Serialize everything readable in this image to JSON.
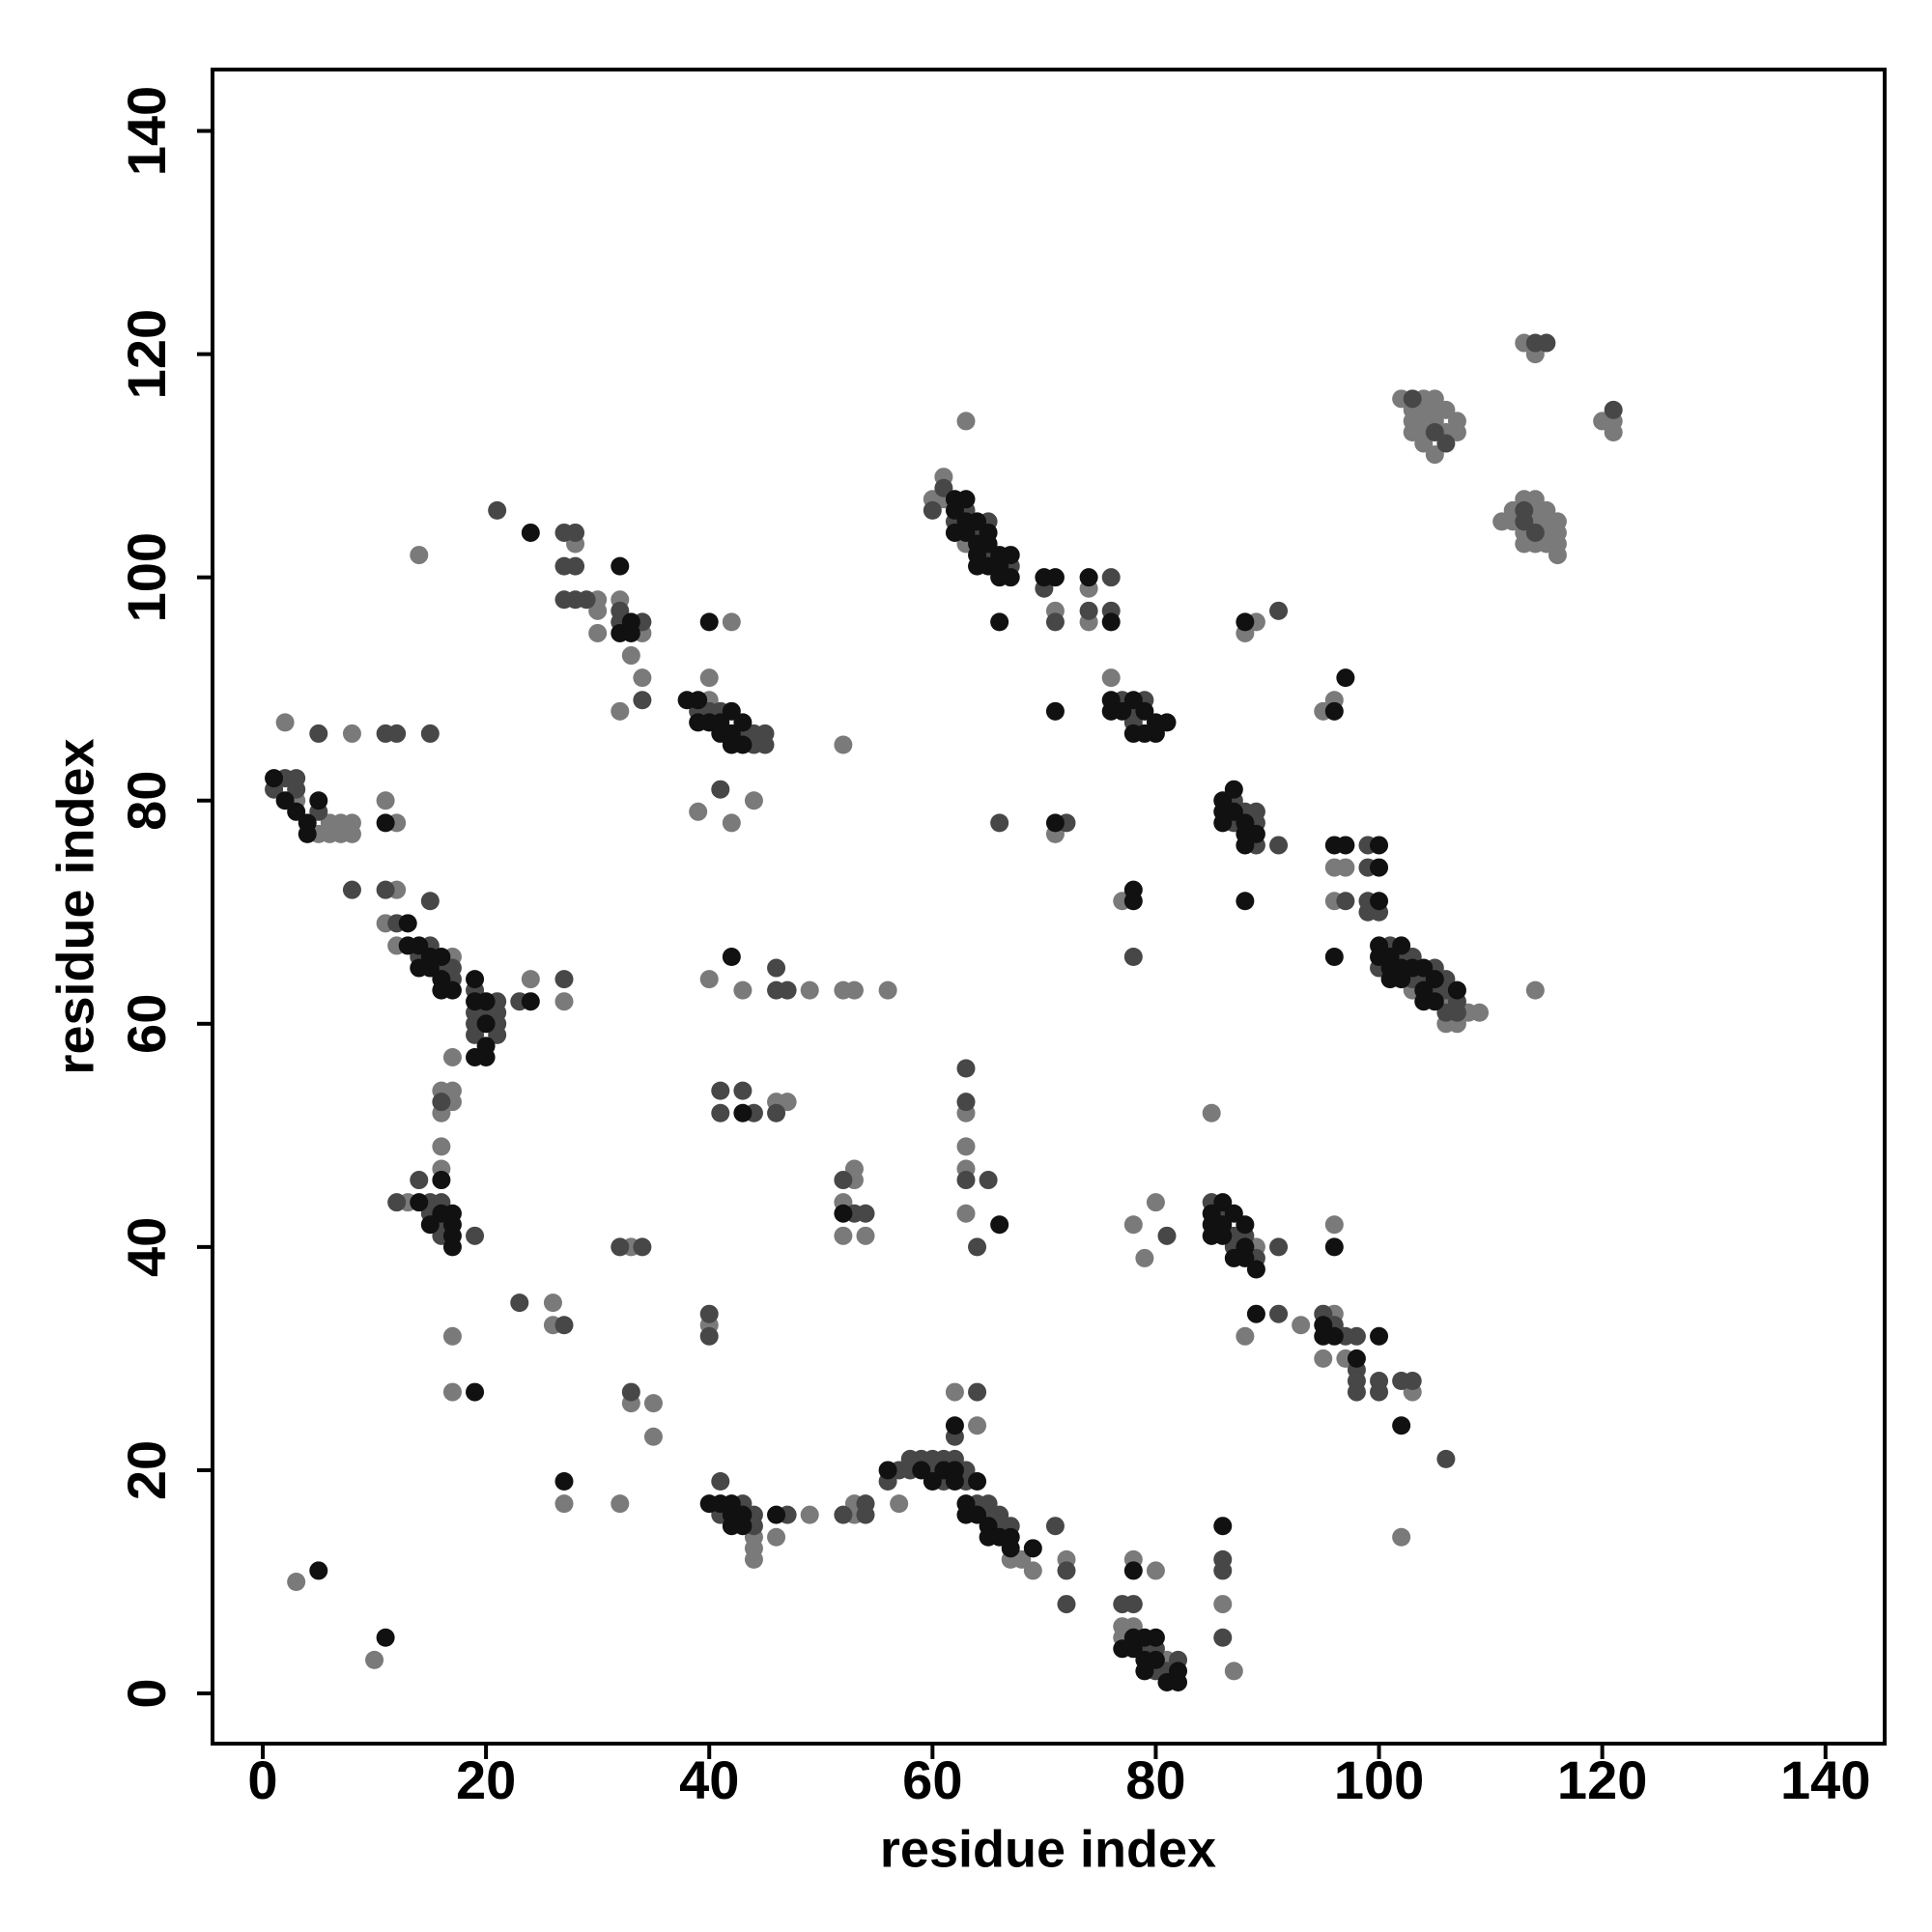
{
  "chart_data": {
    "type": "scatter",
    "xlabel": "residue index",
    "ylabel": "residue index",
    "xlim": [
      -4.5,
      145.3
    ],
    "ylim": [
      -4.5,
      145.5
    ],
    "xticks": [
      0,
      20,
      40,
      60,
      80,
      100,
      120,
      140
    ],
    "yticks": [
      0,
      20,
      40,
      60,
      80,
      100,
      120,
      140
    ],
    "series": [
      {
        "color": "#7a7a7a",
        "x": [
          3,
          5,
          6,
          7,
          7,
          8,
          6,
          8,
          2,
          8,
          11,
          12,
          12,
          11,
          12,
          17,
          24,
          27,
          17,
          16,
          17,
          17,
          16,
          16,
          16,
          13,
          17,
          17,
          26,
          26,
          3,
          10,
          14,
          28,
          30,
          30,
          30,
          32,
          34,
          33,
          34,
          32,
          40,
          40,
          42,
          39,
          42,
          44,
          52,
          40,
          43,
          49,
          52,
          53,
          56,
          46,
          47,
          33,
          40,
          33,
          35,
          35,
          27,
          32,
          44,
          44,
          44,
          46,
          49,
          53,
          53,
          52,
          52,
          54,
          53,
          53,
          57,
          62,
          64,
          67,
          68,
          69,
          72,
          63,
          63,
          63,
          63,
          60,
          61,
          61,
          63,
          63,
          71,
          74,
          74,
          71,
          76,
          77,
          85,
          80,
          78,
          79,
          89,
          88,
          93,
          96,
          95,
          97,
          103,
          102,
          78,
          80,
          77,
          77,
          78,
          81,
          86,
          87,
          88,
          89,
          95,
          96,
          96,
          97,
          96,
          96,
          103,
          106,
          106,
          107,
          108,
          109,
          114,
          102,
          104,
          103,
          104,
          105,
          103,
          104,
          105,
          106,
          103,
          104,
          106,
          107,
          107,
          104,
          105,
          105,
          113,
          114,
          120,
          121,
          121,
          111,
          112,
          113,
          114,
          112,
          114,
          115,
          114,
          115,
          116,
          113,
          115,
          116,
          113,
          114,
          115,
          116,
          116
        ],
        "values": [
          80,
          77,
          77,
          78,
          77,
          77,
          78,
          78,
          87,
          86,
          80,
          78,
          72,
          69,
          67,
          66,
          64,
          62,
          57,
          54,
          54,
          53,
          52,
          49,
          47,
          44,
          32,
          27,
          35,
          33,
          10,
          3,
          102,
          103,
          98,
          97,
          95,
          98,
          95,
          93,
          91,
          88,
          89,
          91,
          96,
          79,
          78,
          80,
          85,
          64,
          63,
          63,
          63,
          63,
          63,
          53,
          53,
          40,
          33,
          26,
          26,
          23,
          17,
          17,
          14,
          13,
          12,
          14,
          16,
          47,
          46,
          44,
          41,
          41,
          17,
          16,
          17,
          27,
          24,
          12,
          12,
          11,
          12,
          52,
          49,
          47,
          43,
          107,
          109,
          107,
          103,
          114,
          97,
          99,
          96,
          77,
          91,
          71,
          52,
          44,
          42,
          39,
          40,
          32,
          33,
          34,
          30,
          30,
          27,
          14,
          12,
          11,
          6,
          5,
          6,
          3,
          8,
          2,
          95,
          96,
          88,
          89,
          74,
          74,
          71,
          42,
          63,
          62,
          60,
          60,
          61,
          61,
          63,
          116,
          116,
          115,
          115,
          116,
          114,
          114,
          114,
          115,
          113,
          113,
          113,
          114,
          113,
          112,
          111,
          115,
          121,
          120,
          114,
          114,
          113,
          105,
          106,
          107,
          107,
          105,
          106,
          106,
          105,
          105,
          105,
          104,
          104,
          104,
          103,
          103,
          103,
          103,
          102
        ]
      },
      {
        "color": "#474747",
        "x": [
          2,
          3,
          1,
          3,
          5,
          5,
          11,
          12,
          15,
          8,
          11,
          15,
          12,
          14,
          15,
          16,
          17,
          17,
          19,
          19,
          19,
          19,
          20,
          21,
          21,
          21,
          21,
          23,
          27,
          16,
          14,
          12,
          15,
          16,
          15,
          16,
          16,
          19,
          23,
          27,
          21,
          27,
          28,
          27,
          28,
          27,
          28,
          29,
          32,
          32,
          34,
          34,
          39,
          40,
          41,
          43,
          44,
          44,
          45,
          45,
          41,
          46,
          46,
          47,
          41,
          43,
          41,
          44,
          46,
          32,
          34,
          40,
          40,
          33,
          41,
          41,
          43,
          44,
          44,
          47,
          52,
          53,
          54,
          52,
          54,
          54,
          56,
          57,
          58,
          59,
          58,
          60,
          60,
          61,
          61,
          62,
          62,
          64,
          63,
          63,
          65,
          64,
          65,
          66,
          66,
          67,
          71,
          72,
          72,
          63,
          63,
          63,
          64,
          65,
          60,
          61,
          62,
          63,
          64,
          65,
          65,
          67,
          66,
          70,
          71,
          74,
          76,
          76,
          72,
          77,
          78,
          78,
          79,
          78,
          81,
          85,
          86,
          87,
          87,
          88,
          89,
          91,
          91,
          95,
          96,
          97,
          98,
          98,
          98,
          98,
          100,
          100,
          102,
          103,
          106,
          77,
          78,
          79,
          80,
          80,
          81,
          82,
          86,
          86,
          86,
          87,
          87,
          88,
          89,
          89,
          89,
          91,
          91,
          97,
          99,
          99,
          99,
          99,
          100,
          100,
          101,
          102,
          103,
          103,
          104,
          105,
          105,
          106,
          106,
          106,
          107,
          107,
          103,
          105,
          106,
          114,
          115,
          121,
          113,
          113,
          114
        ],
        "values": [
          82,
          82,
          81,
          81,
          79,
          86,
          86,
          86,
          86,
          72,
          72,
          71,
          69,
          66,
          67,
          65,
          65,
          64,
          63,
          61,
          60,
          59,
          61,
          62,
          61,
          60,
          59,
          62,
          64,
          53,
          46,
          44,
          44,
          44,
          43,
          42,
          41,
          41,
          35,
          33,
          106,
          104,
          104,
          101,
          101,
          98,
          98,
          98,
          97,
          96,
          96,
          89,
          88,
          88,
          88,
          86,
          86,
          85,
          86,
          85,
          81,
          65,
          63,
          63,
          54,
          54,
          52,
          52,
          52,
          40,
          40,
          34,
          32,
          27,
          19,
          16,
          17,
          16,
          15,
          16,
          46,
          43,
          43,
          16,
          17,
          16,
          19,
          20,
          21,
          21,
          20,
          21,
          20,
          21,
          19,
          21,
          23,
          27,
          20,
          19,
          17,
          17,
          16,
          16,
          15,
          15,
          15,
          11,
          8,
          56,
          53,
          46,
          40,
          46,
          106,
          108,
          105,
          106,
          104,
          105,
          102,
          101,
          78,
          99,
          96,
          97,
          100,
          97,
          78,
          89,
          88,
          87,
          89,
          66,
          41,
          44,
          43,
          41,
          40,
          41,
          39,
          40,
          34,
          34,
          33,
          32,
          32,
          29,
          28,
          27,
          28,
          27,
          28,
          28,
          21,
          8,
          8,
          4,
          4,
          2,
          2,
          3,
          12,
          11,
          5,
          80,
          78,
          79,
          79,
          78,
          76,
          76,
          97,
          71,
          76,
          74,
          71,
          70,
          70,
          65,
          67,
          66,
          66,
          64,
          64,
          65,
          63,
          64,
          63,
          61,
          62,
          61,
          116,
          113,
          112,
          121,
          121,
          115,
          106,
          105,
          104
        ]
      },
      {
        "color": "#111111",
        "x": [
          1,
          2,
          3,
          4,
          5,
          4,
          11,
          13,
          13,
          14,
          14,
          15,
          15,
          16,
          16,
          16,
          17,
          19,
          19,
          19,
          20,
          20,
          20,
          20,
          24,
          16,
          14,
          16,
          17,
          15,
          17,
          17,
          17,
          19,
          5,
          11,
          24,
          32,
          32,
          33,
          33,
          38,
          39,
          39,
          40,
          41,
          42,
          41,
          42,
          42,
          43,
          43,
          40,
          42,
          43,
          27,
          40,
          41,
          42,
          42,
          42,
          43,
          43,
          46,
          52,
          56,
          59,
          60,
          61,
          62,
          62,
          62,
          64,
          63,
          63,
          64,
          65,
          65,
          66,
          67,
          67,
          69,
          66,
          62,
          62,
          62,
          63,
          63,
          63,
          64,
          64,
          64,
          64,
          65,
          65,
          65,
          66,
          66,
          66,
          67,
          67,
          66,
          70,
          71,
          74,
          76,
          71,
          71,
          76,
          76,
          77,
          78,
          78,
          79,
          79,
          80,
          80,
          81,
          78,
          78,
          86,
          85,
          85,
          86,
          87,
          85,
          86,
          88,
          88,
          87,
          88,
          89,
          89,
          95,
          95,
          96,
          98,
          100,
          102,
          78,
          77,
          78,
          78,
          79,
          79,
          79,
          80,
          80,
          81,
          82,
          82,
          86,
          86,
          87,
          86,
          86,
          87,
          88,
          88,
          88,
          89,
          88,
          88,
          96,
          97,
          96,
          97,
          100,
          100,
          96,
          96,
          100,
          100,
          100,
          101,
          101,
          101,
          102,
          102,
          102,
          103,
          104,
          104,
          104,
          105,
          105,
          107
        ],
        "values": [
          82,
          80,
          79,
          78,
          80,
          77,
          78,
          69,
          67,
          67,
          65,
          66,
          65,
          66,
          64,
          63,
          63,
          64,
          62,
          57,
          62,
          60,
          58,
          57,
          62,
          46,
          44,
          43,
          43,
          42,
          42,
          41,
          40,
          27,
          11,
          5,
          104,
          101,
          95,
          96,
          95,
          89,
          89,
          87,
          87,
          87,
          88,
          86,
          86,
          85,
          87,
          85,
          96,
          66,
          52,
          19,
          17,
          17,
          17,
          16,
          15,
          16,
          15,
          16,
          43,
          20,
          20,
          19,
          20,
          20,
          19,
          24,
          19,
          17,
          16,
          16,
          15,
          14,
          14,
          14,
          13,
          13,
          42,
          107,
          106,
          104,
          107,
          105,
          104,
          105,
          103,
          102,
          101,
          104,
          103,
          101,
          102,
          101,
          100,
          102,
          100,
          96,
          100,
          100,
          100,
          96,
          88,
          78,
          89,
          88,
          88,
          89,
          86,
          88,
          86,
          87,
          86,
          87,
          72,
          71,
          44,
          43,
          42,
          42,
          43,
          41,
          41,
          42,
          40,
          39,
          39,
          38,
          34,
          33,
          32,
          32,
          30,
          32,
          24,
          11,
          4,
          5,
          4,
          5,
          3,
          2,
          5,
          3,
          1,
          2,
          1,
          15,
          80,
          81,
          79,
          78,
          79,
          78,
          77,
          76,
          77,
          71,
          96,
          88,
          91,
          76,
          76,
          74,
          71,
          66,
          40,
          76,
          67,
          66,
          66,
          65,
          64,
          67,
          65,
          64,
          65,
          65,
          63,
          62,
          64,
          62,
          63
        ]
      }
    ]
  }
}
